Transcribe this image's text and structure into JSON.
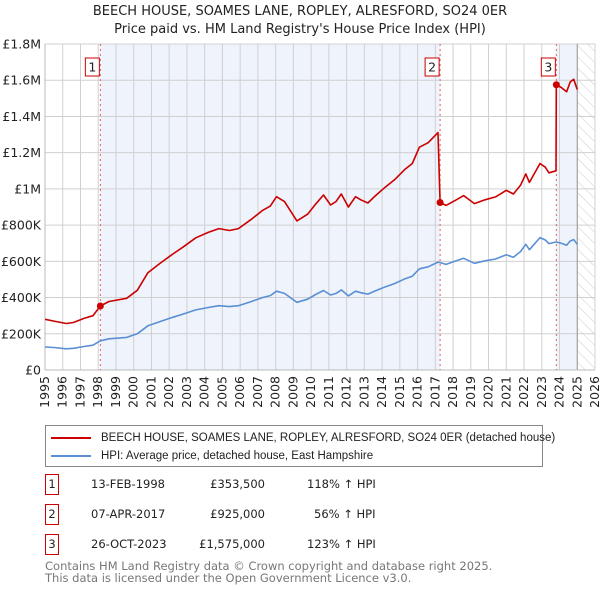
{
  "chart_data": {
    "type": "line",
    "title": "BEECH HOUSE, SOAMES LANE, ROPLEY, ALRESFORD, SO24 0ER",
    "subtitle": "Price paid vs. HM Land Registry's House Price Index (HPI)",
    "xlim": [
      1995,
      2026
    ],
    "ylim": [
      0,
      1800000
    ],
    "x_ticks": [
      "1995",
      "1996",
      "1997",
      "1998",
      "1999",
      "2000",
      "2001",
      "2002",
      "2003",
      "2004",
      "2005",
      "2006",
      "2007",
      "2008",
      "2009",
      "2010",
      "2011",
      "2012",
      "2013",
      "2014",
      "2015",
      "2016",
      "2017",
      "2018",
      "2019",
      "2020",
      "2021",
      "2022",
      "2023",
      "2024",
      "2025",
      "2026"
    ],
    "y_ticks": [
      {
        "value": 0,
        "label": "£0"
      },
      {
        "value": 200000,
        "label": "£200K"
      },
      {
        "value": 400000,
        "label": "£400K"
      },
      {
        "value": 600000,
        "label": "£600K"
      },
      {
        "value": 800000,
        "label": "£800K"
      },
      {
        "value": 1000000,
        "label": "£1M"
      },
      {
        "value": 1200000,
        "label": "£1.2M"
      },
      {
        "value": 1400000,
        "label": "£1.4M"
      },
      {
        "value": 1600000,
        "label": "£1.6M"
      },
      {
        "value": 1800000,
        "label": "£1.8M"
      }
    ],
    "grid": true,
    "data_end_year": 2025.0,
    "colors": {
      "price": "#cc0000",
      "hpi": "#5b8fd4",
      "shade": "#eef3fc",
      "marker_line": "#e06060"
    },
    "series": [
      {
        "name": "BEECH HOUSE, SOAMES LANE, ROPLEY, ALRESFORD, SO24 0ER (detached house)",
        "color": "#cc0000",
        "points": [
          [
            1995.0,
            280000
          ],
          [
            1995.5,
            270000
          ],
          [
            1996.2,
            257000
          ],
          [
            1996.6,
            262000
          ],
          [
            1997.2,
            285000
          ],
          [
            1997.7,
            300000
          ],
          [
            1998.12,
            353500
          ],
          [
            1998.6,
            378000
          ],
          [
            1999.6,
            396000
          ],
          [
            2000.2,
            440000
          ],
          [
            2000.8,
            537000
          ],
          [
            2001.5,
            590000
          ],
          [
            2002.2,
            640000
          ],
          [
            2002.8,
            680000
          ],
          [
            2003.5,
            730000
          ],
          [
            2004.2,
            760000
          ],
          [
            2004.8,
            781000
          ],
          [
            2005.4,
            770000
          ],
          [
            2005.9,
            781000
          ],
          [
            2006.6,
            830000
          ],
          [
            2007.25,
            880000
          ],
          [
            2007.7,
            905000
          ],
          [
            2008.05,
            957000
          ],
          [
            2008.5,
            930000
          ],
          [
            2009.2,
            823000
          ],
          [
            2009.8,
            860000
          ],
          [
            2010.2,
            910000
          ],
          [
            2010.7,
            966000
          ],
          [
            2011.1,
            911000
          ],
          [
            2011.4,
            930000
          ],
          [
            2011.7,
            972000
          ],
          [
            2012.1,
            900000
          ],
          [
            2012.5,
            957000
          ],
          [
            2012.8,
            940000
          ],
          [
            2013.2,
            922000
          ],
          [
            2013.6,
            960000
          ],
          [
            2014.1,
            1003000
          ],
          [
            2014.7,
            1050000
          ],
          [
            2015.3,
            1109000
          ],
          [
            2015.7,
            1140000
          ],
          [
            2016.1,
            1230000
          ],
          [
            2016.6,
            1255000
          ],
          [
            2017.15,
            1311000
          ],
          [
            2017.27,
            925000
          ],
          [
            2017.6,
            909000
          ],
          [
            2018.1,
            935000
          ],
          [
            2018.6,
            963000
          ],
          [
            2019.2,
            919000
          ],
          [
            2019.8,
            940000
          ],
          [
            2020.4,
            956000
          ],
          [
            2021.0,
            992000
          ],
          [
            2021.4,
            972000
          ],
          [
            2021.8,
            1020000
          ],
          [
            2022.1,
            1083000
          ],
          [
            2022.3,
            1036000
          ],
          [
            2022.9,
            1140000
          ],
          [
            2023.2,
            1120000
          ],
          [
            2023.4,
            1089000
          ],
          [
            2023.8,
            1100000
          ],
          [
            2023.82,
            1575000
          ],
          [
            2024.1,
            1560000
          ],
          [
            2024.4,
            1536000
          ],
          [
            2024.6,
            1590000
          ],
          [
            2024.8,
            1605000
          ],
          [
            2025.0,
            1548000
          ]
        ]
      },
      {
        "name": "HPI: Average price, detached house, East Hampshire",
        "color": "#5b8fd4",
        "points": [
          [
            1995.0,
            127000
          ],
          [
            1995.5,
            124000
          ],
          [
            1996.2,
            117000
          ],
          [
            1996.6,
            120000
          ],
          [
            1997.2,
            130000
          ],
          [
            1997.7,
            137000
          ],
          [
            1998.12,
            161000
          ],
          [
            1998.6,
            172000
          ],
          [
            1999.6,
            180000
          ],
          [
            2000.2,
            200000
          ],
          [
            2000.8,
            244000
          ],
          [
            2001.5,
            268000
          ],
          [
            2002.2,
            291000
          ],
          [
            2002.8,
            309000
          ],
          [
            2003.5,
            332000
          ],
          [
            2004.2,
            345000
          ],
          [
            2004.8,
            355000
          ],
          [
            2005.4,
            350000
          ],
          [
            2005.9,
            355000
          ],
          [
            2006.6,
            377000
          ],
          [
            2007.25,
            400000
          ],
          [
            2007.7,
            411000
          ],
          [
            2008.05,
            435000
          ],
          [
            2008.5,
            423000
          ],
          [
            2009.2,
            374000
          ],
          [
            2009.8,
            391000
          ],
          [
            2010.2,
            414000
          ],
          [
            2010.7,
            439000
          ],
          [
            2011.1,
            414000
          ],
          [
            2011.4,
            423000
          ],
          [
            2011.7,
            442000
          ],
          [
            2012.1,
            409000
          ],
          [
            2012.5,
            435000
          ],
          [
            2012.8,
            427000
          ],
          [
            2013.2,
            419000
          ],
          [
            2013.6,
            436000
          ],
          [
            2014.1,
            456000
          ],
          [
            2014.7,
            477000
          ],
          [
            2015.3,
            504000
          ],
          [
            2015.7,
            518000
          ],
          [
            2016.1,
            559000
          ],
          [
            2016.6,
            570000
          ],
          [
            2017.15,
            596000
          ],
          [
            2017.27,
            593000
          ],
          [
            2017.6,
            583000
          ],
          [
            2018.1,
            600000
          ],
          [
            2018.6,
            617000
          ],
          [
            2019.2,
            589000
          ],
          [
            2019.8,
            603000
          ],
          [
            2020.4,
            613000
          ],
          [
            2021.0,
            636000
          ],
          [
            2021.4,
            623000
          ],
          [
            2021.8,
            654000
          ],
          [
            2022.1,
            694000
          ],
          [
            2022.3,
            664000
          ],
          [
            2022.9,
            731000
          ],
          [
            2023.2,
            718000
          ],
          [
            2023.4,
            698000
          ],
          [
            2023.8,
            707000
          ],
          [
            2024.1,
            700000
          ],
          [
            2024.4,
            689000
          ],
          [
            2024.6,
            712000
          ],
          [
            2024.8,
            720000
          ],
          [
            2025.0,
            694000
          ]
        ]
      }
    ],
    "sales": [
      {
        "id": "1",
        "year": 1998.12,
        "price": 353500
      },
      {
        "id": "2",
        "year": 2017.27,
        "price": 925000
      },
      {
        "id": "3",
        "year": 2023.82,
        "price": 1575000
      }
    ]
  },
  "legend": {
    "price_label": "BEECH HOUSE, SOAMES LANE, ROPLEY, ALRESFORD, SO24 0ER (detached house)",
    "hpi_label": "HPI: Average price, detached house, East Hampshire"
  },
  "transactions": [
    {
      "num": "1",
      "date": "13-FEB-1998",
      "price": "£353,500",
      "hpi": "118% ↑ HPI"
    },
    {
      "num": "2",
      "date": "07-APR-2017",
      "price": "£925,000",
      "hpi": "56% ↑ HPI"
    },
    {
      "num": "3",
      "date": "26-OCT-2023",
      "price": "£1,575,000",
      "hpi": "123% ↑ HPI"
    }
  ],
  "footer": {
    "line1": "Contains HM Land Registry data © Crown copyright and database right 2025.",
    "line2": "This data is licensed under the Open Government Licence v3.0."
  }
}
